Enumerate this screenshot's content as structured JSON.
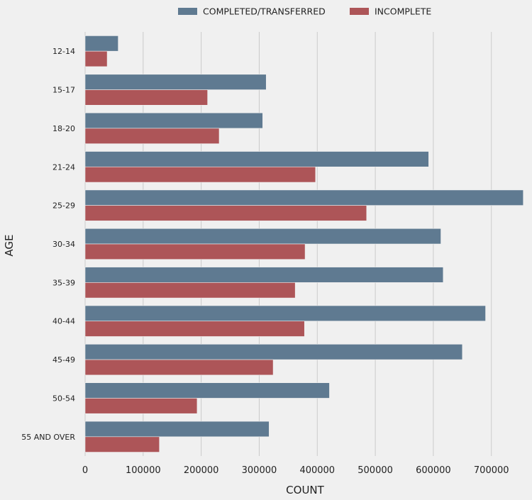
{
  "chart_data": {
    "type": "bar",
    "orientation": "horizontal",
    "categories": [
      "12-14",
      "15-17",
      "18-20",
      "21-24",
      "25-29",
      "30-34",
      "35-39",
      "40-44",
      "45-49",
      "50-54",
      "55 AND OVER"
    ],
    "series": [
      {
        "name": "COMPLETED/TRANSFERRED",
        "color": "#5f7a91",
        "values": [
          57000,
          312000,
          306000,
          592000,
          755000,
          613000,
          617000,
          690000,
          650000,
          421000,
          317000
        ]
      },
      {
        "name": "INCOMPLETE",
        "color": "#ad5558",
        "values": [
          38000,
          211000,
          231000,
          397000,
          485000,
          379000,
          362000,
          378000,
          324000,
          193000,
          128000
        ]
      }
    ],
    "xlabel": "COUNT",
    "ylabel": "AGE",
    "xlim": [
      0,
      770000
    ],
    "xticks": [
      "0",
      "100000",
      "200000",
      "300000",
      "400000",
      "500000",
      "600000",
      "700000"
    ],
    "grid": "vertical",
    "legend_position": "top-center"
  }
}
